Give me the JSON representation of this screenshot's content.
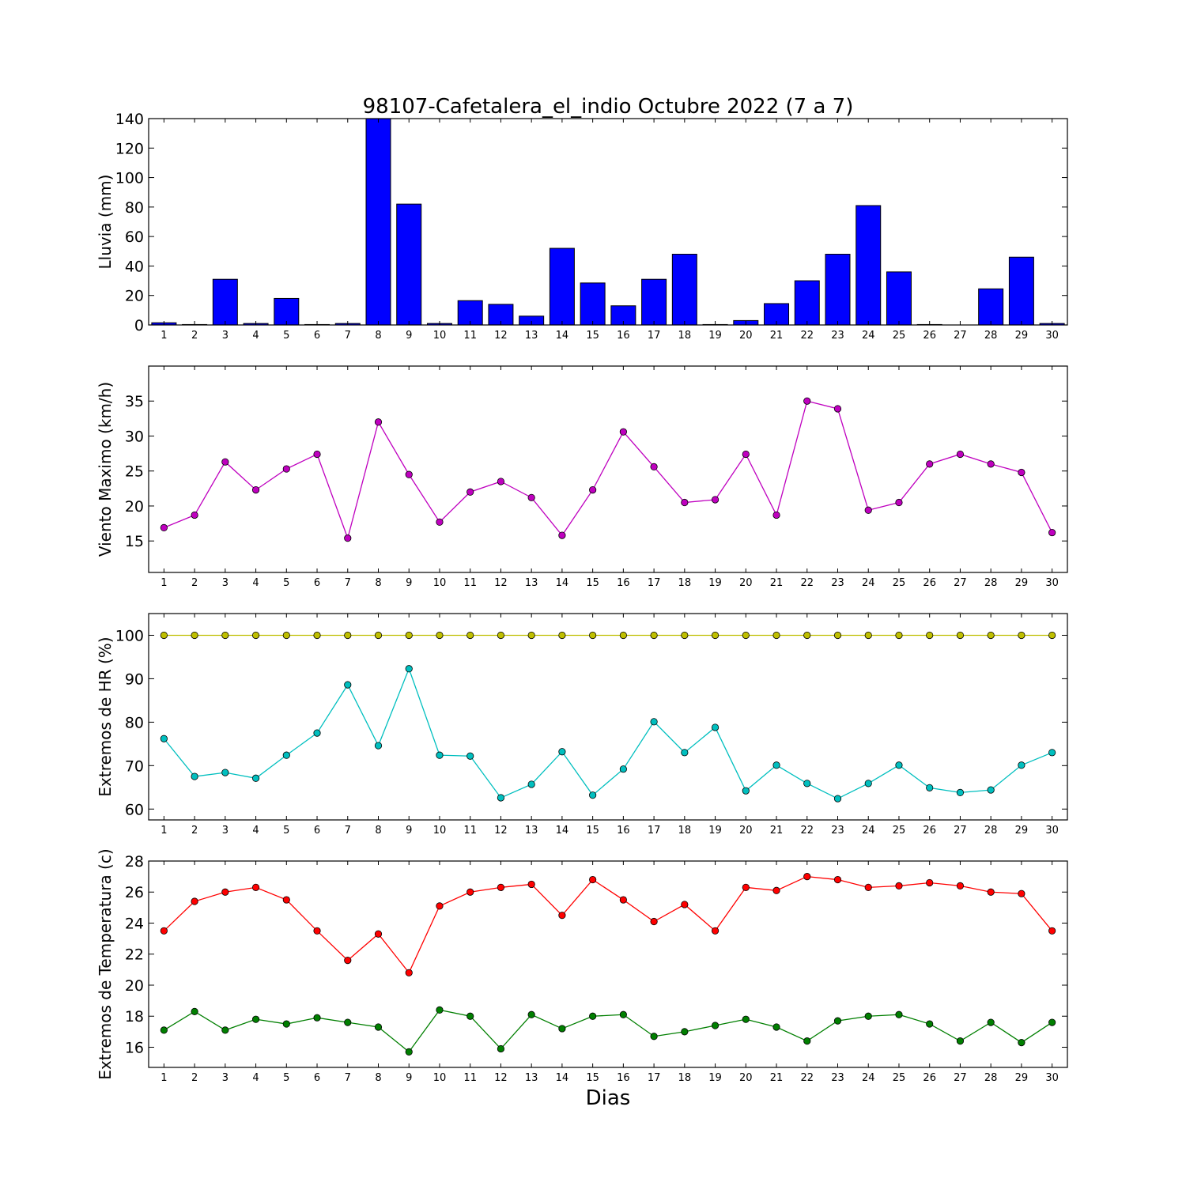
{
  "figure": {
    "title": "98107-Cafetalera_el_indio Octubre 2022  (7 a 7)",
    "xlabel": "Dias"
  },
  "chart_data": [
    {
      "type": "bar",
      "ylabel": "Lluvia (mm)",
      "ylim": [
        0,
        140
      ],
      "yticks": [
        0,
        20,
        40,
        60,
        80,
        100,
        120,
        140
      ],
      "categories": [
        1,
        2,
        3,
        4,
        5,
        6,
        7,
        8,
        9,
        10,
        11,
        12,
        13,
        14,
        15,
        16,
        17,
        18,
        19,
        20,
        21,
        22,
        23,
        24,
        25,
        26,
        27,
        28,
        29,
        30
      ],
      "series": [
        {
          "color": "#0000ff",
          "values": [
            1.5,
            0.3,
            31,
            1,
            18,
            0.3,
            1,
            140,
            82,
            1,
            16.5,
            14,
            6,
            52,
            28.5,
            13,
            31,
            48,
            0.3,
            3,
            14.5,
            30,
            48,
            81,
            36,
            0.3,
            0,
            24.5,
            46,
            1
          ]
        }
      ],
      "grid": false
    },
    {
      "type": "line",
      "ylabel": "Viento Maximo (km/h)",
      "ylim": [
        10.5,
        40
      ],
      "yticks": [
        15,
        20,
        25,
        30,
        35
      ],
      "x": [
        1,
        2,
        3,
        4,
        5,
        6,
        7,
        8,
        9,
        10,
        11,
        12,
        13,
        14,
        15,
        16,
        17,
        18,
        19,
        20,
        21,
        22,
        23,
        24,
        25,
        26,
        27,
        28,
        29,
        30
      ],
      "series": [
        {
          "color": "#bf00bf",
          "values": [
            16.9,
            18.7,
            26.3,
            22.3,
            25.3,
            27.4,
            15.4,
            32.0,
            24.5,
            17.7,
            22.0,
            23.5,
            21.2,
            15.8,
            22.3,
            30.6,
            25.6,
            20.5,
            20.9,
            27.4,
            18.7,
            35.0,
            33.9,
            19.4,
            20.5,
            26.0,
            27.4,
            26.0,
            24.8,
            16.2
          ]
        }
      ],
      "grid": false
    },
    {
      "type": "line",
      "ylabel": "Extremos de HR (%)",
      "ylim": [
        57.5,
        105
      ],
      "yticks": [
        60,
        70,
        80,
        90,
        100
      ],
      "x": [
        1,
        2,
        3,
        4,
        5,
        6,
        7,
        8,
        9,
        10,
        11,
        12,
        13,
        14,
        15,
        16,
        17,
        18,
        19,
        20,
        21,
        22,
        23,
        24,
        25,
        26,
        27,
        28,
        29,
        30
      ],
      "series": [
        {
          "color": "#bfbf00",
          "values": [
            100,
            100,
            100,
            100,
            100,
            100,
            100,
            100,
            100,
            100,
            100,
            100,
            100,
            100,
            100,
            100,
            100,
            100,
            100,
            100,
            100,
            100,
            100,
            100,
            100,
            100,
            100,
            100,
            100,
            100
          ]
        },
        {
          "color": "#00bfbf",
          "values": [
            76.2,
            67.5,
            68.4,
            67.1,
            72.4,
            77.5,
            88.6,
            74.6,
            92.3,
            72.4,
            72.2,
            62.6,
            65.7,
            73.2,
            63.2,
            69.2,
            80.1,
            73.0,
            78.8,
            64.2,
            70.1,
            65.9,
            62.4,
            65.9,
            70.1,
            64.9,
            63.8,
            64.4,
            70.1,
            73.0
          ]
        }
      ],
      "grid": false
    },
    {
      "type": "line",
      "ylabel": "Extremos de Temperatura (c)",
      "ylim": [
        14.7,
        28
      ],
      "yticks": [
        16,
        18,
        20,
        22,
        24,
        26,
        28
      ],
      "x": [
        1,
        2,
        3,
        4,
        5,
        6,
        7,
        8,
        9,
        10,
        11,
        12,
        13,
        14,
        15,
        16,
        17,
        18,
        19,
        20,
        21,
        22,
        23,
        24,
        25,
        26,
        27,
        28,
        29,
        30
      ],
      "series": [
        {
          "color": "#ff0000",
          "values": [
            23.5,
            25.4,
            26.0,
            26.3,
            25.5,
            23.5,
            21.6,
            23.3,
            20.8,
            25.1,
            26.0,
            26.3,
            26.5,
            24.5,
            26.8,
            25.5,
            24.1,
            25.2,
            23.5,
            26.3,
            26.1,
            27.0,
            26.8,
            26.3,
            26.4,
            26.6,
            26.4,
            26.0,
            25.9,
            23.5
          ]
        },
        {
          "color": "#007f00",
          "values": [
            17.1,
            18.3,
            17.1,
            17.8,
            17.5,
            17.9,
            17.6,
            17.3,
            15.7,
            18.4,
            18.0,
            15.9,
            18.1,
            17.2,
            18.0,
            18.1,
            16.7,
            17.0,
            17.4,
            17.8,
            17.3,
            16.4,
            17.7,
            18.0,
            18.1,
            17.5,
            16.4,
            17.6,
            16.3,
            17.6
          ]
        }
      ],
      "grid": false
    }
  ]
}
